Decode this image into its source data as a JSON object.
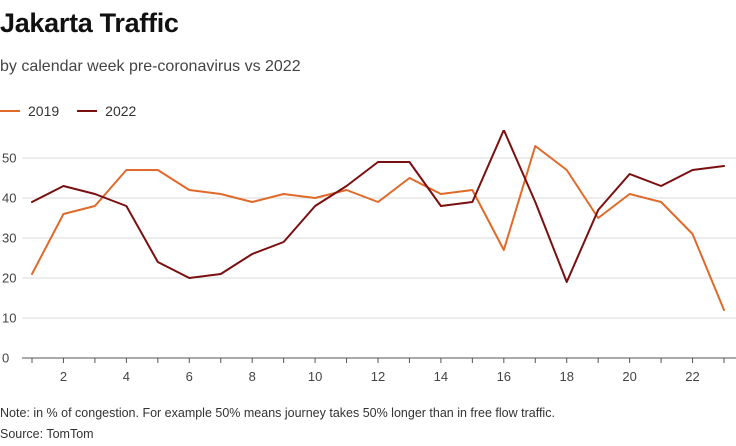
{
  "header": {
    "title": "Jakarta Traffic",
    "subtitle": "by calendar week pre-coronavirus vs 2022"
  },
  "footer": {
    "note": "Note: in % of congestion. For example 50% means journey takes 50% longer than in free flow traffic.",
    "source": "Source: TomTom"
  },
  "colors": {
    "s2019": "#e06a2a",
    "s2022": "#7a0f10",
    "grid": "#d9d9d9",
    "axis": "#555555"
  },
  "chart_data": {
    "type": "line",
    "title": "Jakarta Traffic",
    "subtitle": "by calendar week pre-coronavirus vs 2022",
    "xlabel": "",
    "ylabel": "",
    "x": [
      1,
      2,
      3,
      4,
      5,
      6,
      7,
      8,
      9,
      10,
      11,
      12,
      13,
      14,
      15,
      16,
      17,
      18,
      19,
      20,
      21,
      22,
      23
    ],
    "xticks": [
      2,
      4,
      6,
      8,
      10,
      12,
      14,
      16,
      18,
      20,
      22
    ],
    "yticks": [
      0,
      10,
      20,
      30,
      40,
      50
    ],
    "xlim": [
      1,
      23
    ],
    "ylim": [
      0,
      57
    ],
    "grid": true,
    "legend_position": "top-left",
    "series": [
      {
        "name": "2019",
        "values": [
          21,
          36,
          38,
          47,
          47,
          42,
          41,
          39,
          41,
          40,
          42,
          39,
          45,
          41,
          42,
          27,
          53,
          47,
          35,
          41,
          39,
          31,
          12
        ]
      },
      {
        "name": "2022",
        "values": [
          39,
          43,
          41,
          38,
          24,
          20,
          21,
          26,
          29,
          38,
          43,
          49,
          49,
          38,
          39,
          57,
          39,
          19,
          37,
          46,
          43,
          47,
          48
        ]
      }
    ]
  }
}
